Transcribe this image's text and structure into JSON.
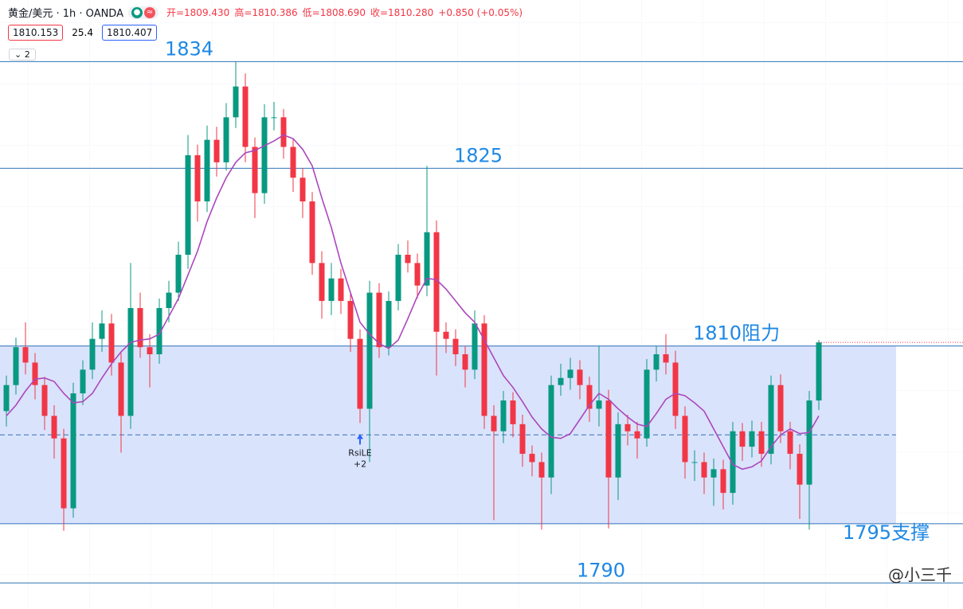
{
  "header": {
    "symbol": "黄金/美元 · 1h · OANDA",
    "ohlc": [
      "开=1809.430",
      "高=1810.386",
      "低=1808.690",
      "收=1810.280",
      "+0.850 (+0.05%)"
    ],
    "price_boxes": [
      "1810.153",
      "25.4",
      "1810.407"
    ],
    "badge": "2"
  },
  "watermark": "@小三千",
  "chart_data": {
    "type": "candlestick",
    "ylim": [
      1787.8,
      1839.2
    ],
    "up_color": "#089981",
    "down_color": "#f23645",
    "open": [
      1804.5,
      1806.7,
      1809.9,
      1808.6,
      1806.7,
      1804.1,
      1802.2,
      1796.3,
      1806.0,
      1808.0,
      1810.6,
      1811.9,
      1808.6,
      1804.1,
      1813.2,
      1809.9,
      1809.3,
      1813.2,
      1814.5,
      1817.7,
      1826.1,
      1822.2,
      1827.4,
      1825.5,
      1829.3,
      1831.9,
      1826.8,
      1822.9,
      1829.3,
      1829.3,
      1826.8,
      1824.2,
      1822.2,
      1817.0,
      1813.8,
      1815.7,
      1813.8,
      1810.6,
      1804.7,
      1814.5,
      1809.9,
      1813.8,
      1817.7,
      1817.0,
      1815.1,
      1819.6,
      1811.2,
      1810.6,
      1809.3,
      1808.0,
      1811.9,
      1804.1,
      1802.8,
      1805.4,
      1803.4,
      1800.9,
      1800.2,
      1798.9,
      1806.7,
      1807.3,
      1808.0,
      1806.7,
      1804.7,
      1805.4,
      1798.9,
      1803.4,
      1802.8,
      1802.2,
      1808.0,
      1809.3,
      1808.6,
      1804.1,
      1800.2,
      1800.2,
      1798.9,
      1799.6,
      1797.6,
      1802.8,
      1801.5,
      1802.8,
      1800.9,
      1806.7,
      1802.8,
      1800.9,
      1798.3,
      1805.4
    ],
    "high": [
      1807.5,
      1810.7,
      1812.0,
      1809.4,
      1807.4,
      1805.0,
      1803.0,
      1806.9,
      1808.8,
      1812.0,
      1813.0,
      1812.7,
      1809.4,
      1817.0,
      1814.5,
      1811.0,
      1814.0,
      1815.5,
      1818.8,
      1827.8,
      1827.0,
      1828.6,
      1828.5,
      1830.5,
      1834.0,
      1833.0,
      1827.6,
      1830.4,
      1830.6,
      1830.0,
      1827.5,
      1825.0,
      1823.0,
      1818.0,
      1817.0,
      1816.5,
      1814.6,
      1811.4,
      1815.5,
      1815.3,
      1814.6,
      1818.6,
      1818.9,
      1817.8,
      1825.2,
      1820.6,
      1812.0,
      1811.4,
      1810.0,
      1813.0,
      1812.6,
      1805.0,
      1806.2,
      1806.1,
      1804.2,
      1801.6,
      1801.0,
      1807.5,
      1808.5,
      1809.0,
      1808.8,
      1807.4,
      1810.0,
      1806.3,
      1804.4,
      1804.2,
      1803.6,
      1808.9,
      1810.0,
      1811.0,
      1809.6,
      1804.9,
      1801.2,
      1801.0,
      1800.5,
      1800.4,
      1803.6,
      1803.5,
      1803.7,
      1803.6,
      1807.5,
      1807.6,
      1803.6,
      1801.7,
      1806.2,
      1810.5
    ],
    "low": [
      1803.2,
      1805.9,
      1807.6,
      1805.5,
      1802.9,
      1800.5,
      1794.4,
      1795.5,
      1805.0,
      1807.2,
      1809.5,
      1807.5,
      1801.0,
      1803.0,
      1809.0,
      1806.5,
      1808.5,
      1812.0,
      1813.8,
      1816.5,
      1820.5,
      1821.3,
      1824.3,
      1824.8,
      1828.4,
      1825.5,
      1820.8,
      1822.0,
      1828.2,
      1825.8,
      1823.0,
      1820.8,
      1816.0,
      1812.3,
      1812.6,
      1812.7,
      1809.5,
      1803.5,
      1800.2,
      1809.0,
      1809.2,
      1813.0,
      1816.2,
      1814.0,
      1814.2,
      1807.5,
      1809.4,
      1808.3,
      1806.5,
      1807.2,
      1803.0,
      1795.3,
      1801.8,
      1802.3,
      1799.8,
      1799.0,
      1794.5,
      1797.5,
      1805.8,
      1806.3,
      1805.5,
      1803.6,
      1803.2,
      1794.6,
      1797.0,
      1801.6,
      1800.5,
      1801.5,
      1807.0,
      1807.6,
      1803.0,
      1798.8,
      1798.6,
      1797.5,
      1796.5,
      1796.2,
      1796.6,
      1800.3,
      1800.6,
      1799.8,
      1800.0,
      1801.8,
      1799.6,
      1795.4,
      1794.5,
      1804.6
    ],
    "close": [
      1806.7,
      1809.9,
      1808.6,
      1806.7,
      1804.1,
      1802.2,
      1796.3,
      1806.0,
      1808.0,
      1810.6,
      1811.9,
      1808.6,
      1804.1,
      1813.2,
      1809.9,
      1809.3,
      1813.2,
      1814.5,
      1817.7,
      1826.1,
      1822.2,
      1827.4,
      1825.5,
      1829.3,
      1831.9,
      1826.8,
      1822.9,
      1829.3,
      1829.3,
      1826.8,
      1824.2,
      1822.2,
      1817.0,
      1813.8,
      1815.7,
      1813.8,
      1810.6,
      1804.7,
      1814.5,
      1809.9,
      1813.8,
      1817.7,
      1817.0,
      1815.1,
      1819.6,
      1811.2,
      1810.6,
      1809.3,
      1808.0,
      1811.9,
      1804.1,
      1802.8,
      1805.4,
      1803.4,
      1800.9,
      1800.2,
      1798.9,
      1806.7,
      1807.3,
      1808.0,
      1806.7,
      1804.7,
      1805.4,
      1798.9,
      1803.4,
      1802.8,
      1802.2,
      1808.0,
      1809.3,
      1808.6,
      1804.1,
      1800.2,
      1800.2,
      1798.9,
      1799.6,
      1797.6,
      1802.8,
      1801.5,
      1802.8,
      1800.9,
      1806.7,
      1802.8,
      1800.9,
      1798.3,
      1805.4,
      1810.3
    ],
    "ma": {
      "color": "#ab47bc",
      "values": [
        1804.1,
        1805.0,
        1806.2,
        1807.2,
        1807.3,
        1807.0,
        1806.0,
        1805.2,
        1805.3,
        1806.0,
        1807.3,
        1808.5,
        1809.5,
        1810.3,
        1810.5,
        1810.6,
        1811.0,
        1812.5,
        1814.0,
        1816.0,
        1818.0,
        1820.5,
        1822.5,
        1824.2,
        1825.5,
        1826.3,
        1826.5,
        1826.9,
        1827.3,
        1827.8,
        1827.5,
        1826.6,
        1825.2,
        1822.5,
        1820.0,
        1817.0,
        1814.5,
        1812.0,
        1811.0,
        1810.2,
        1809.8,
        1810.5,
        1812.3,
        1814.2,
        1815.7,
        1815.6,
        1814.8,
        1813.8,
        1812.8,
        1812.0,
        1810.5,
        1809.0,
        1807.5,
        1806.5,
        1805.3,
        1804.0,
        1803.0,
        1802.3,
        1802.2,
        1802.6,
        1803.8,
        1805.0,
        1806.0,
        1805.5,
        1804.7,
        1804.0,
        1803.4,
        1803.2,
        1804.3,
        1805.5,
        1806.0,
        1805.8,
        1805.2,
        1804.5,
        1803.0,
        1801.5,
        1800.0,
        1799.6,
        1799.8,
        1800.3,
        1801.5,
        1802.5,
        1803.0,
        1802.6,
        1802.7,
        1804.1
      ]
    },
    "levels": [
      {
        "value": 1834,
        "label": "1834"
      },
      {
        "value": 1825,
        "label": "1825"
      },
      {
        "value": 1810,
        "label": "1810阻力"
      },
      {
        "value": 1795,
        "label": "1795支撑"
      },
      {
        "value": 1790,
        "label": "1790"
      }
    ],
    "zone_color": "#d3defc",
    "level_color": "#2f73b8",
    "annotation_color": "#1e88e5",
    "signal": {
      "label": "RsiLE",
      "qty": "+2"
    }
  }
}
